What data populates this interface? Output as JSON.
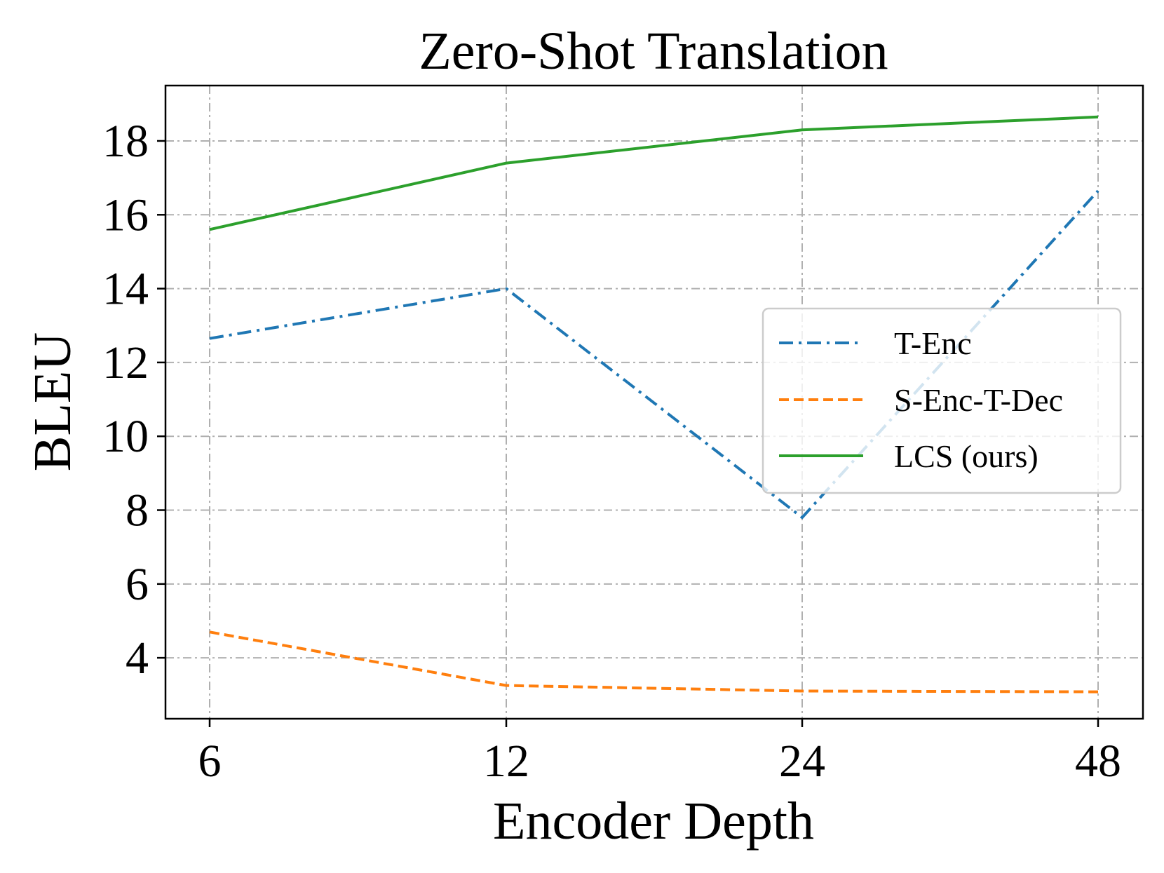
{
  "chart_data": {
    "type": "line",
    "title": "Zero-Shot Translation",
    "xlabel": "Encoder Depth",
    "ylabel": "BLEU",
    "categories": [
      "6",
      "12",
      "24",
      "48"
    ],
    "y_ticks": [
      4,
      6,
      8,
      10,
      12,
      14,
      16,
      18
    ],
    "ylim": [
      2.35,
      19.5
    ],
    "grid": true,
    "legend_position": "center-right",
    "series": [
      {
        "name": "T-Enc",
        "values": [
          12.65,
          14.0,
          7.8,
          16.65
        ],
        "color": "#1f77b4",
        "style": "dashdot"
      },
      {
        "name": "S-Enc-T-Dec",
        "values": [
          4.7,
          3.25,
          3.1,
          3.08
        ],
        "color": "#ff7f0e",
        "style": "dashed"
      },
      {
        "name": "LCS (ours)",
        "values": [
          15.6,
          17.4,
          18.3,
          18.65
        ],
        "color": "#2ca02c",
        "style": "solid"
      }
    ]
  }
}
